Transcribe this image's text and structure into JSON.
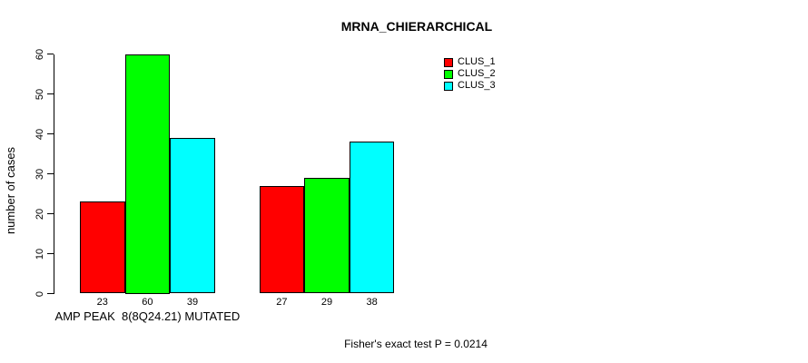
{
  "chart_data": {
    "type": "bar",
    "title": "MRNA_CHIERARCHICAL",
    "ylabel": "number of cases",
    "subtitle": "Fisher's exact test P = 0.0214",
    "ylim": [
      0,
      60
    ],
    "yticks": [
      0,
      10,
      20,
      30,
      40,
      50,
      60
    ],
    "categories": [
      "AMP PEAK  8(8Q24.21) MUTATED",
      ""
    ],
    "series": [
      {
        "name": "CLUS_1",
        "color": "#ff0000",
        "values": [
          23,
          27
        ]
      },
      {
        "name": "CLUS_2",
        "color": "#00ff00",
        "values": [
          60,
          29
        ]
      },
      {
        "name": "CLUS_3",
        "color": "#00ffff",
        "values": [
          39,
          38
        ]
      }
    ],
    "bar_value_labels": [
      [
        23,
        60,
        39
      ],
      [
        27,
        29,
        38
      ]
    ],
    "legend_position": "top-right",
    "grid": false,
    "background": "#ffffff",
    "text_color": "#000000"
  }
}
